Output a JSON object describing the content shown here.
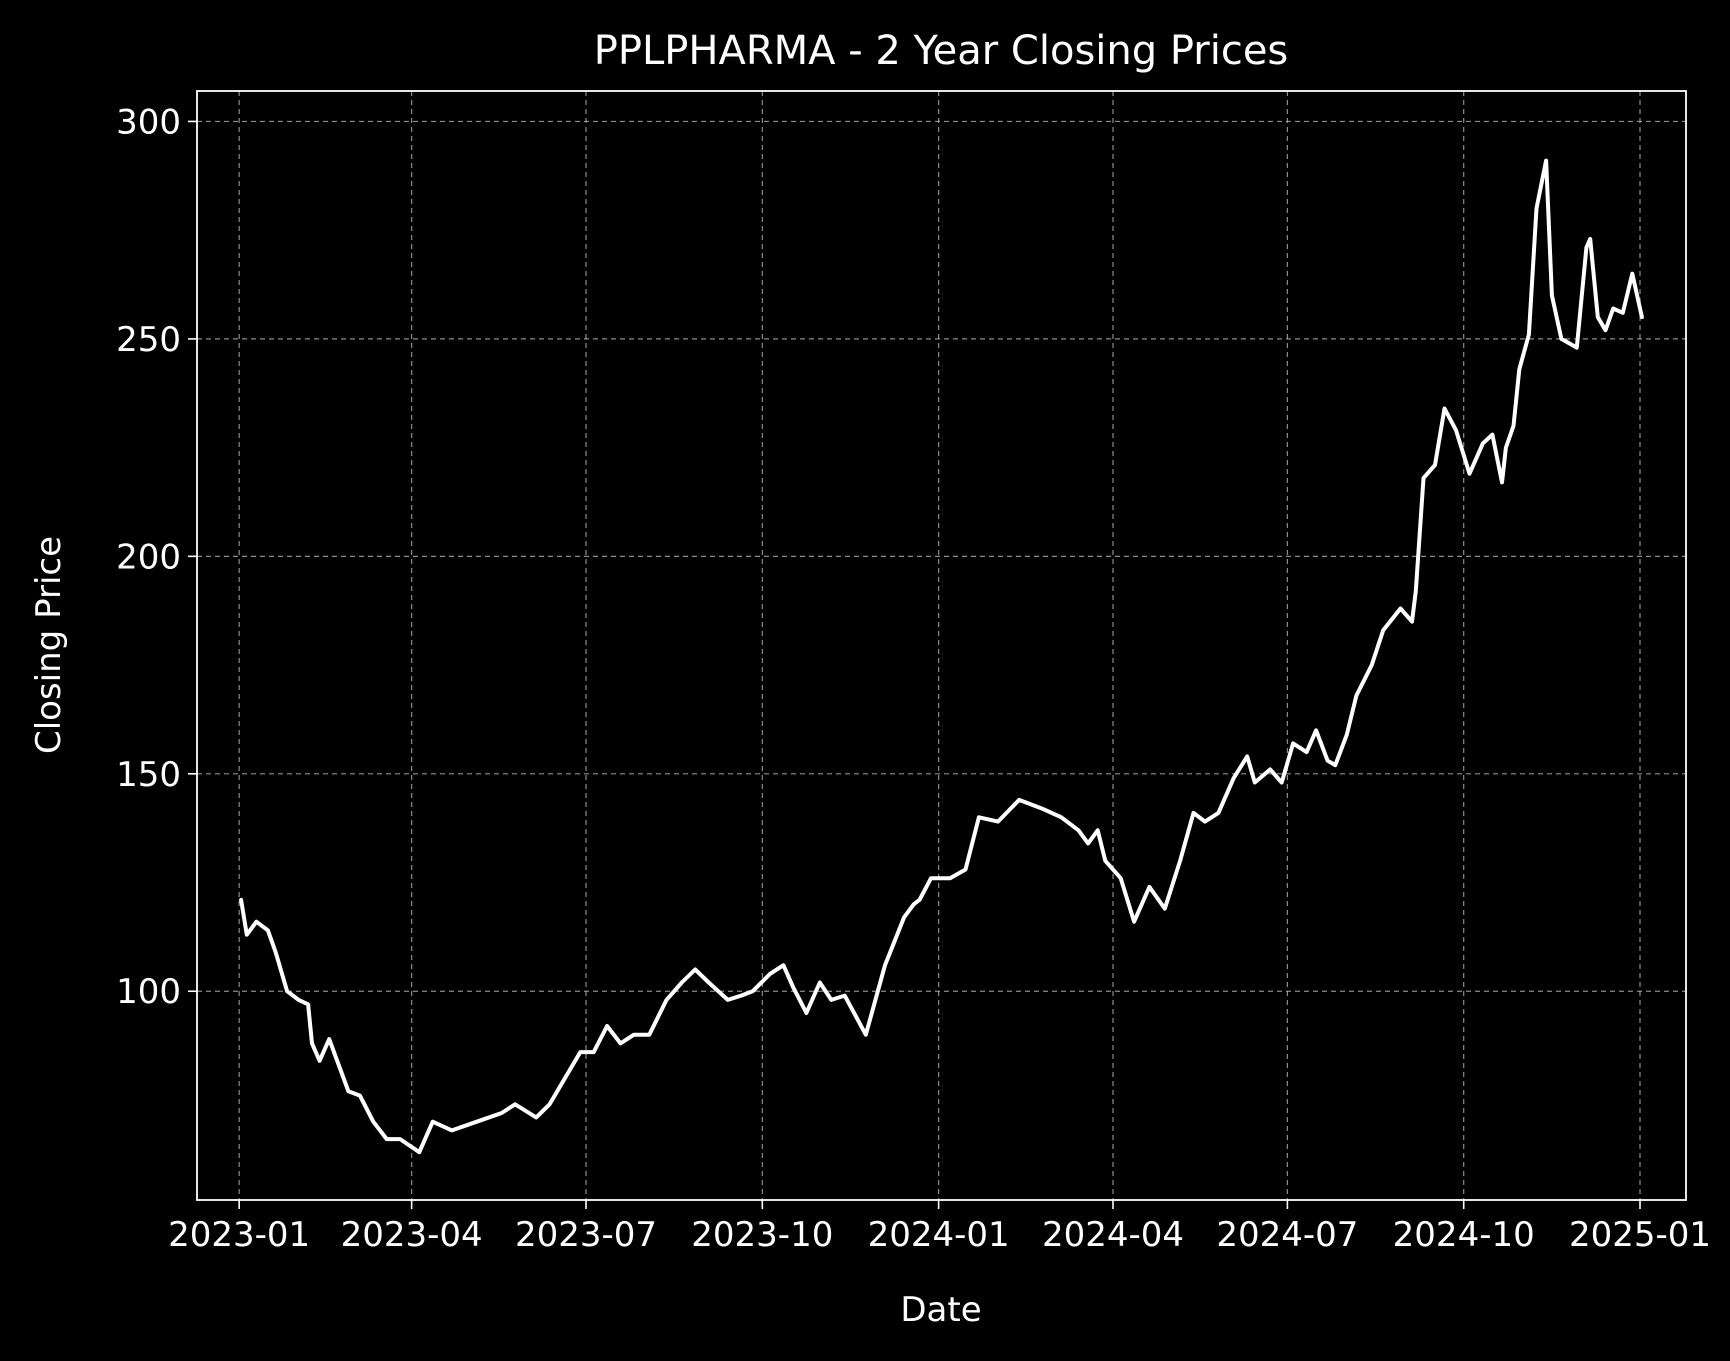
{
  "chart_data": {
    "type": "line",
    "title": "PPLPHARMA - 2 Year Closing Prices",
    "xlabel": "Date",
    "ylabel": "Closing Price",
    "xlim": [
      "2022-12-10",
      "2025-01-25"
    ],
    "ylim": [
      52,
      307
    ],
    "grid": true,
    "colors": {
      "background": "#000000",
      "line": "#ffffff",
      "grid": "#bbbbbb",
      "text": "#ffffff"
    },
    "x_ticks": [
      "2023-01-01",
      "2023-04-01",
      "2023-07-01",
      "2023-10-01",
      "2024-01-01",
      "2024-04-01",
      "2024-07-01",
      "2024-10-01",
      "2025-01-01"
    ],
    "x_tick_labels": [
      "2023-01",
      "2023-04",
      "2023-07",
      "2023-10",
      "2024-01",
      "2024-04",
      "2024-07",
      "2024-10",
      "2025-01"
    ],
    "y_ticks": [
      100,
      150,
      200,
      250,
      300
    ],
    "y_tick_labels": [
      "100",
      "150",
      "200",
      "250",
      "300"
    ],
    "series": [
      {
        "x": [
          "2023-01-02",
          "2023-01-05",
          "2023-01-10",
          "2023-01-16",
          "2023-01-20",
          "2023-01-26",
          "2023-02-01",
          "2023-02-06",
          "2023-02-08",
          "2023-02-12",
          "2023-02-17",
          "2023-02-22",
          "2023-02-27",
          "2023-03-05",
          "2023-03-12",
          "2023-03-19",
          "2023-03-26",
          "2023-04-05",
          "2023-04-12",
          "2023-04-22",
          "2023-05-05",
          "2023-05-18",
          "2023-05-25",
          "2023-06-05",
          "2023-06-12",
          "2023-06-20",
          "2023-06-28",
          "2023-07-05",
          "2023-07-12",
          "2023-07-19",
          "2023-07-26",
          "2023-08-03",
          "2023-08-12",
          "2023-08-20",
          "2023-08-27",
          "2023-09-03",
          "2023-09-13",
          "2023-09-20",
          "2023-09-26",
          "2023-10-05",
          "2023-10-12",
          "2023-10-17",
          "2023-10-24",
          "2023-10-31",
          "2023-11-06",
          "2023-11-13",
          "2023-11-24",
          "2023-12-04",
          "2023-12-14",
          "2023-12-19",
          "2023-12-22",
          "2023-12-28",
          "2024-01-07",
          "2024-01-15",
          "2024-01-22",
          "2024-02-01",
          "2024-02-12",
          "2024-02-24",
          "2024-03-05",
          "2024-03-14",
          "2024-03-19",
          "2024-03-24",
          "2024-03-28",
          "2024-04-05",
          "2024-04-12",
          "2024-04-20",
          "2024-04-28",
          "2024-05-06",
          "2024-05-13",
          "2024-05-19",
          "2024-05-26",
          "2024-06-03",
          "2024-06-10",
          "2024-06-14",
          "2024-06-22",
          "2024-06-28",
          "2024-07-04",
          "2024-07-11",
          "2024-07-16",
          "2024-07-22",
          "2024-07-26",
          "2024-08-01",
          "2024-08-06",
          "2024-08-14",
          "2024-08-20",
          "2024-08-29",
          "2024-09-04",
          "2024-09-06",
          "2024-09-10",
          "2024-09-16",
          "2024-09-21",
          "2024-09-27",
          "2024-10-04",
          "2024-10-11",
          "2024-10-16",
          "2024-10-21",
          "2024-10-23",
          "2024-10-27",
          "2024-10-30",
          "2024-11-04",
          "2024-11-08",
          "2024-11-13",
          "2024-11-16",
          "2024-11-21",
          "2024-11-29",
          "2024-12-04",
          "2024-12-06",
          "2024-12-10",
          "2024-12-14",
          "2024-12-18",
          "2024-12-23",
          "2024-12-28",
          "2025-01-02"
        ],
        "y": [
          121,
          113,
          116,
          114,
          109,
          100,
          98,
          97,
          88,
          84,
          89,
          83,
          77,
          76,
          70,
          66,
          66,
          63,
          70,
          68,
          70,
          72,
          74,
          71,
          74,
          80,
          86,
          86,
          92,
          88,
          90,
          90,
          98,
          102,
          105,
          102,
          98,
          99,
          100,
          104,
          106,
          101,
          95,
          102,
          98,
          99,
          90,
          106,
          117,
          120,
          121,
          126,
          126,
          128,
          140,
          139,
          144,
          142,
          140,
          137,
          134,
          137,
          130,
          126,
          116,
          124,
          119,
          130,
          141,
          139,
          141,
          149,
          154,
          148,
          151,
          148,
          157,
          155,
          160,
          153,
          152,
          159,
          168,
          175,
          183,
          188,
          185,
          192,
          218,
          221,
          234,
          229,
          219,
          226,
          228,
          217,
          225,
          230,
          243,
          251,
          280,
          291,
          260,
          250,
          248,
          271,
          273,
          255,
          252,
          257,
          256,
          265,
          255
        ],
        "color": "#ffffff"
      }
    ]
  }
}
